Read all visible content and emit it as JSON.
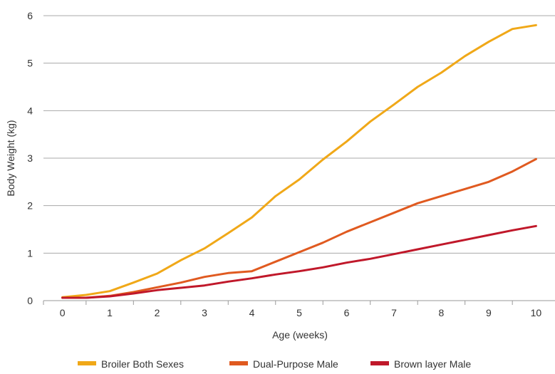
{
  "chart_data": {
    "type": "line",
    "title": "",
    "xlabel": "Age (weeks)",
    "ylabel": "Body Weight (kg)",
    "x": [
      0,
      0.5,
      1,
      1.5,
      2,
      2.5,
      3,
      3.5,
      4,
      4.5,
      5,
      5.5,
      6,
      6.5,
      7,
      7.5,
      8,
      8.5,
      9,
      9.5,
      10
    ],
    "xlim": [
      -0.4,
      10.4
    ],
    "ylim": [
      0,
      6
    ],
    "x_ticks": [
      "0",
      "1",
      "2",
      "3",
      "4",
      "5",
      "6",
      "7",
      "8",
      "9",
      "10"
    ],
    "y_ticks": [
      "0",
      "1",
      "2",
      "3",
      "4",
      "5",
      "6"
    ],
    "grid": "horizontal",
    "legend_position": "bottom",
    "series": [
      {
        "name": "Broiler Both Sexes",
        "color": "#F0A818",
        "values": [
          0.07,
          0.12,
          0.2,
          0.38,
          0.57,
          0.85,
          1.1,
          1.42,
          1.75,
          2.2,
          2.55,
          2.97,
          3.35,
          3.77,
          4.13,
          4.5,
          4.8,
          5.15,
          5.45,
          5.72,
          5.8
        ]
      },
      {
        "name": "Dual-Purpose Male",
        "color": "#E05A20",
        "values": [
          0.06,
          0.06,
          0.1,
          0.18,
          0.28,
          0.38,
          0.5,
          0.58,
          0.62,
          0.82,
          1.02,
          1.22,
          1.45,
          1.65,
          1.85,
          2.05,
          2.2,
          2.35,
          2.5,
          2.72,
          2.98
        ]
      },
      {
        "name": "Brown layer Male",
        "color": "#C0182A",
        "values": [
          0.06,
          0.06,
          0.09,
          0.15,
          0.22,
          0.27,
          0.32,
          0.4,
          0.47,
          0.55,
          0.62,
          0.7,
          0.8,
          0.88,
          0.98,
          1.08,
          1.18,
          1.28,
          1.38,
          1.48,
          1.57
        ]
      }
    ]
  }
}
